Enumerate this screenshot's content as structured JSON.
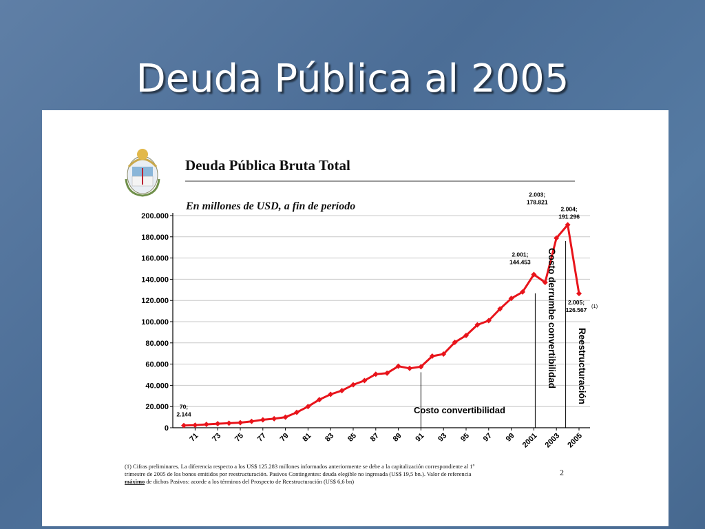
{
  "slide": {
    "title": "Deuda Pública al 2005",
    "page_number": "2"
  },
  "colors": {
    "background": "#4f729b",
    "series": "#e8141b",
    "text": "#000000"
  },
  "chart_data": {
    "type": "line",
    "title": "Deuda Pública Bruta Total",
    "subtitle": "En millones de USD, a fin de período",
    "ylim": [
      0,
      200000
    ],
    "y_ticks": [
      "200.000",
      "180.000",
      "160.000",
      "140.000",
      "120.000",
      "100.000",
      "80.000",
      "60.000",
      "40.000",
      "20.000",
      "0"
    ],
    "x_ticks": [
      "71",
      "73",
      "75",
      "77",
      "79",
      "81",
      "83",
      "85",
      "87",
      "89",
      "91",
      "93",
      "95",
      "97",
      "99",
      "2001",
      "2003",
      "2005"
    ],
    "grid": true,
    "series": [
      {
        "x": [
          1970,
          1971,
          1972,
          1973,
          1974,
          1975,
          1976,
          1977,
          1978,
          1979,
          1980,
          1981,
          1982,
          1983,
          1984,
          1985,
          1986,
          1987,
          1988,
          1989,
          1990,
          1991,
          1992,
          1993,
          1994,
          1995,
          1996,
          1997,
          1998,
          1999,
          2000,
          2001,
          2002,
          2003,
          2004,
          2005
        ],
        "values": [
          2144,
          2400,
          3200,
          3800,
          4300,
          4800,
          6000,
          7500,
          8500,
          10000,
          14500,
          20000,
          26500,
          31500,
          35000,
          40500,
          44500,
          50500,
          51500,
          58000,
          56000,
          57500,
          67500,
          69500,
          80500,
          87000,
          97000,
          101000,
          112000,
          121900,
          128000,
          144453,
          137000,
          178821,
          191296,
          126567
        ]
      }
    ],
    "point_labels": [
      {
        "year": 1970,
        "text_1": "70;",
        "text_2": "2.144"
      },
      {
        "year": 2001,
        "text_1": "2.001;",
        "text_2": "144.453"
      },
      {
        "year": 2003,
        "text_1": "2.003;",
        "text_2": "178.821"
      },
      {
        "year": 2004,
        "text_1": "2.004;",
        "text_2": "191.296"
      },
      {
        "year": 2005,
        "text_1": "2.005;",
        "text_2": "126.567"
      }
    ],
    "footnote_marker": "(1)",
    "annotations": {
      "costo_convertibilidad": "Costo convertibilidad",
      "costo_derrumbe": "Costo derrumbe convertibilidad",
      "reestructuracion": "Reestructuración"
    },
    "divider_years": [
      1991,
      2001,
      2004
    ]
  },
  "footnote": {
    "line1": "(1) Cifras preliminares. La diferencia respecto a los US$ 125.283 millones informados anteriormente se debe a la capitalización correspondiente al 1º",
    "line2": "trimestre de 2005 de los bonos emitidos por reestructuración. Pasivos Contingentes: deuda elegible no ingresada (US$ 19,5 bn.). Valor de referencia",
    "line3_underlined": "máximo",
    "line3_rest": " de dichos Pasivos: acorde a los términos del Prospecto de Reestructuración (US$ 6,6 bn)"
  }
}
